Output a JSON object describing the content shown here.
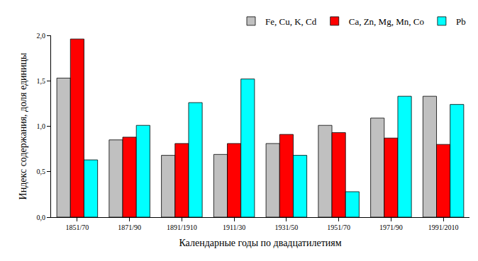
{
  "chart_data": {
    "type": "bar",
    "x_label": "Календарные годы по двадцатилетиям",
    "y_label": "Индекс содержания, доля единицы",
    "categories": [
      "1851/70",
      "1871/90",
      "1891/1910",
      "1911/30",
      "1931/50",
      "1951/70",
      "1971/90",
      "1991/2010"
    ],
    "series": [
      {
        "name": "Fe, Cu, K, Cd",
        "color": "#c0c0c0",
        "values": [
          1.53,
          0.85,
          0.68,
          0.69,
          0.81,
          1.01,
          1.09,
          1.33
        ]
      },
      {
        "name": "Ca, Zn, Mg, Mn, Co",
        "color": "#ff0000",
        "values": [
          1.96,
          0.88,
          0.81,
          0.81,
          0.91,
          0.93,
          0.87,
          0.8
        ]
      },
      {
        "name": "Pb",
        "color": "#00ffff",
        "values": [
          0.63,
          1.01,
          1.26,
          1.52,
          0.68,
          0.28,
          1.33,
          1.24
        ]
      }
    ],
    "ylim": [
      0,
      2
    ],
    "yticks": [
      {
        "value": 0,
        "label": "0,0"
      },
      {
        "value": 0.5,
        "label": "0,5"
      },
      {
        "value": 1,
        "label": "1,0"
      },
      {
        "value": 1.5,
        "label": "1,5"
      },
      {
        "value": 2,
        "label": "2,0"
      }
    ],
    "grid": false,
    "legend": "top-right"
  }
}
